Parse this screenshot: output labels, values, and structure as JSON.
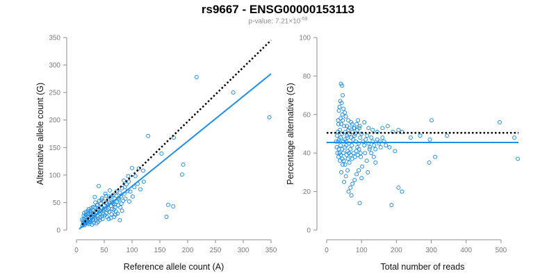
{
  "title": "rs9667 - ENSG00000153113",
  "subtitle_prefix": "p-value: 7.21×10",
  "subtitle_exp": "-59",
  "colors": {
    "points": "#1f8ee6",
    "fit": "#1f8ee6",
    "reference": "#000000",
    "axis": "#8c8c8c"
  },
  "chart_data": [
    {
      "type": "scatter",
      "title": "",
      "xlabel": "Reference allele count (A)",
      "ylabel": "Alternative allele count (G)",
      "xlim": [
        0,
        350
      ],
      "ylim": [
        0,
        350
      ],
      "xticks": [
        0,
        50,
        100,
        150,
        200,
        250,
        300,
        350
      ],
      "yticks": [
        0,
        50,
        100,
        150,
        200,
        250,
        300,
        350
      ],
      "grid": false,
      "reference_line": {
        "style": "dotted",
        "from": [
          10,
          10
        ],
        "to": [
          350,
          345
        ]
      },
      "fit_line": {
        "style": "solid",
        "from": [
          5,
          2
        ],
        "to": [
          350,
          284
        ]
      },
      "points": [
        [
          216,
          278
        ],
        [
          282,
          250
        ],
        [
          347,
          205
        ],
        [
          129,
          171
        ],
        [
          175,
          168
        ],
        [
          153,
          139
        ],
        [
          192,
          119
        ],
        [
          112,
          112
        ],
        [
          100,
          113
        ],
        [
          120,
          108
        ],
        [
          190,
          101
        ],
        [
          165,
          46
        ],
        [
          174,
          43
        ],
        [
          162,
          24
        ],
        [
          121,
          88
        ],
        [
          106,
          98
        ],
        [
          93,
          98
        ],
        [
          85,
          90
        ],
        [
          90,
          83
        ],
        [
          97,
          70
        ],
        [
          82,
          76
        ],
        [
          78,
          68
        ],
        [
          76,
          58
        ],
        [
          72,
          62
        ],
        [
          84,
          53
        ],
        [
          81,
          48
        ],
        [
          70,
          42
        ],
        [
          65,
          51
        ],
        [
          62,
          44
        ],
        [
          58,
          39
        ],
        [
          55,
          48
        ],
        [
          50,
          45
        ],
        [
          48,
          36
        ],
        [
          45,
          41
        ],
        [
          42,
          30
        ],
        [
          40,
          38
        ],
        [
          38,
          26
        ],
        [
          36,
          33
        ],
        [
          34,
          22
        ],
        [
          32,
          29
        ],
        [
          30,
          18
        ],
        [
          28,
          24
        ],
        [
          26,
          31
        ],
        [
          24,
          15
        ],
        [
          22,
          20
        ],
        [
          20,
          12
        ],
        [
          18,
          17
        ],
        [
          16,
          24
        ],
        [
          14,
          11
        ],
        [
          12,
          16
        ],
        [
          10,
          19
        ],
        [
          11,
          8
        ],
        [
          15,
          9
        ],
        [
          19,
          14
        ],
        [
          23,
          11
        ],
        [
          27,
          17
        ],
        [
          31,
          13
        ],
        [
          35,
          19
        ],
        [
          39,
          15
        ],
        [
          43,
          23
        ],
        [
          47,
          20
        ],
        [
          51,
          27
        ],
        [
          55,
          24
        ],
        [
          59,
          33
        ],
        [
          63,
          29
        ],
        [
          67,
          37
        ],
        [
          71,
          34
        ],
        [
          75,
          45
        ],
        [
          79,
          41
        ],
        [
          73,
          52
        ],
        [
          69,
          57
        ],
        [
          66,
          48
        ],
        [
          61,
          59
        ],
        [
          57,
          55
        ],
        [
          53,
          62
        ],
        [
          49,
          52
        ],
        [
          46,
          58
        ],
        [
          44,
          48
        ],
        [
          41,
          53
        ],
        [
          37,
          45
        ],
        [
          33,
          41
        ],
        [
          29,
          37
        ],
        [
          25,
          35
        ],
        [
          21,
          30
        ],
        [
          17,
          28
        ],
        [
          13,
          26
        ],
        [
          40,
          80
        ],
        [
          52,
          66
        ],
        [
          60,
          72
        ],
        [
          33,
          60
        ],
        [
          38,
          46
        ],
        [
          44,
          34
        ],
        [
          30,
          42
        ],
        [
          26,
          25
        ],
        [
          22,
          38
        ],
        [
          35,
          31
        ],
        [
          48,
          29
        ],
        [
          56,
          36
        ],
        [
          64,
          38
        ],
        [
          74,
          30
        ],
        [
          82,
          35
        ],
        [
          88,
          57
        ],
        [
          95,
          52
        ],
        [
          101,
          61
        ],
        [
          68,
          24
        ],
        [
          78,
          18
        ],
        [
          58,
          20
        ],
        [
          42,
          18
        ],
        [
          36,
          12
        ],
        [
          28,
          10
        ],
        [
          18,
          22
        ],
        [
          24,
          28
        ],
        [
          30,
          30
        ],
        [
          37,
          36
        ],
        [
          44,
          40
        ],
        [
          51,
          38
        ],
        [
          57,
          45
        ],
        [
          63,
          50
        ],
        [
          69,
          46
        ],
        [
          76,
          55
        ],
        [
          86,
          66
        ],
        [
          92,
          71
        ],
        [
          104,
          78
        ],
        [
          110,
          84
        ],
        [
          115,
          74
        ],
        [
          70,
          28
        ],
        [
          62,
          22
        ],
        [
          54,
          31
        ],
        [
          46,
          26
        ],
        [
          39,
          21
        ],
        [
          31,
          24
        ],
        [
          25,
          19
        ],
        [
          20,
          25
        ],
        [
          16,
          14
        ],
        [
          13,
          20
        ],
        [
          12,
          12
        ],
        [
          14,
          31
        ],
        [
          17,
          33
        ],
        [
          21,
          35
        ],
        [
          27,
          40
        ],
        [
          34,
          50
        ],
        [
          45,
          55
        ],
        [
          53,
          49
        ],
        [
          59,
          61
        ],
        [
          66,
          64
        ],
        [
          72,
          70
        ],
        [
          80,
          61
        ],
        [
          87,
          78
        ],
        [
          94,
          88
        ]
      ]
    },
    {
      "type": "scatter",
      "title": "",
      "xlabel": "Total number of reads",
      "ylabel": "Percentage alternative (G)",
      "xlim": [
        0,
        550
      ],
      "ylim": [
        0,
        100
      ],
      "xticks": [
        0,
        100,
        200,
        300,
        400,
        500
      ],
      "yticks": [
        0,
        20,
        40,
        60,
        80,
        100
      ],
      "grid": false,
      "reference_line": {
        "style": "dotted",
        "from": [
          0,
          50.5
        ],
        "to": [
          550,
          50.5
        ]
      },
      "fit_line": {
        "style": "solid",
        "from": [
          0,
          45.5
        ],
        "to": [
          550,
          45.5
        ]
      },
      "points": [
        [
          41,
          76
        ],
        [
          44,
          75
        ],
        [
          46,
          70
        ],
        [
          39,
          67
        ],
        [
          43,
          66
        ],
        [
          37,
          64
        ],
        [
          48,
          63
        ],
        [
          52,
          61
        ],
        [
          35,
          62
        ],
        [
          45,
          60
        ],
        [
          55,
          59
        ],
        [
          62,
          57
        ],
        [
          70,
          56
        ],
        [
          40,
          58
        ],
        [
          33,
          57
        ],
        [
          58,
          54
        ],
        [
          65,
          53
        ],
        [
          73,
          55
        ],
        [
          80,
          53
        ],
        [
          88,
          52
        ],
        [
          95,
          54
        ],
        [
          108,
          56
        ],
        [
          120,
          53
        ],
        [
          132,
          52
        ],
        [
          145,
          51
        ],
        [
          160,
          53
        ],
        [
          175,
          54
        ],
        [
          190,
          51
        ],
        [
          206,
          52
        ],
        [
          216,
          51
        ],
        [
          241,
          48
        ],
        [
          268,
          49
        ],
        [
          296,
          47
        ],
        [
          301,
          57
        ],
        [
          345,
          49
        ],
        [
          496,
          56
        ],
        [
          538,
          48
        ],
        [
          548,
          37
        ],
        [
          294,
          35
        ],
        [
          311,
          38
        ],
        [
          216,
          20
        ],
        [
          206,
          22
        ],
        [
          186,
          13
        ],
        [
          95,
          14
        ],
        [
          128,
          40
        ],
        [
          152,
          46
        ],
        [
          170,
          44
        ],
        [
          180,
          43
        ],
        [
          196,
          41
        ],
        [
          140,
          35
        ],
        [
          135,
          38
        ],
        [
          123,
          42
        ],
        [
          115,
          36
        ],
        [
          110,
          40
        ],
        [
          102,
          33
        ],
        [
          98,
          38
        ],
        [
          92,
          31
        ],
        [
          86,
          29
        ],
        [
          80,
          26
        ],
        [
          74,
          24
        ],
        [
          68,
          22
        ],
        [
          60,
          31
        ],
        [
          55,
          28
        ],
        [
          50,
          25
        ],
        [
          46,
          34
        ],
        [
          42,
          30
        ],
        [
          38,
          36
        ],
        [
          34,
          38
        ],
        [
          31,
          40
        ],
        [
          29,
          43
        ],
        [
          27,
          46
        ],
        [
          30,
          49
        ],
        [
          32,
          51
        ],
        [
          36,
          47
        ],
        [
          40,
          44
        ],
        [
          44,
          42
        ],
        [
          48,
          40
        ],
        [
          52,
          43
        ],
        [
          56,
          46
        ],
        [
          60,
          48
        ],
        [
          64,
          45
        ],
        [
          68,
          42
        ],
        [
          72,
          44
        ],
        [
          76,
          47
        ],
        [
          80,
          49
        ],
        [
          84,
          46
        ],
        [
          88,
          43
        ],
        [
          92,
          45
        ],
        [
          96,
          48
        ],
        [
          100,
          50
        ],
        [
          104,
          46
        ],
        [
          108,
          44
        ],
        [
          112,
          47
        ],
        [
          116,
          49
        ],
        [
          120,
          45
        ],
        [
          124,
          43
        ],
        [
          128,
          48
        ],
        [
          132,
          46
        ],
        [
          136,
          44
        ],
        [
          140,
          42
        ],
        [
          145,
          47
        ],
        [
          150,
          45
        ],
        [
          155,
          43
        ],
        [
          160,
          48
        ],
        [
          165,
          46
        ],
        [
          38,
          52
        ],
        [
          42,
          55
        ],
        [
          46,
          57
        ],
        [
          50,
          54
        ],
        [
          54,
          51
        ],
        [
          58,
          49
        ],
        [
          62,
          52
        ],
        [
          66,
          50
        ],
        [
          70,
          48
        ],
        [
          74,
          51
        ],
        [
          78,
          53
        ],
        [
          82,
          50
        ],
        [
          86,
          55
        ],
        [
          90,
          57
        ],
        [
          94,
          53
        ],
        [
          35,
          42
        ],
        [
          33,
          46
        ],
        [
          37,
          40
        ],
        [
          41,
          39
        ],
        [
          45,
          37
        ],
        [
          49,
          36
        ],
        [
          53,
          34
        ],
        [
          57,
          39
        ],
        [
          61,
          37
        ],
        [
          65,
          35
        ],
        [
          69,
          39
        ],
        [
          73,
          37
        ],
        [
          77,
          40
        ],
        [
          81,
          38
        ],
        [
          85,
          41
        ],
        [
          89,
          39
        ],
        [
          93,
          42
        ],
        [
          97,
          40
        ],
        [
          63,
          20
        ],
        [
          71,
          18
        ],
        [
          100,
          27
        ],
        [
          118,
          30
        ],
        [
          40,
          48
        ],
        [
          44,
          50
        ],
        [
          48,
          46
        ],
        [
          52,
          47
        ],
        [
          56,
          44
        ],
        [
          60,
          41
        ],
        [
          64,
          40
        ],
        [
          34,
          55
        ]
      ]
    }
  ]
}
